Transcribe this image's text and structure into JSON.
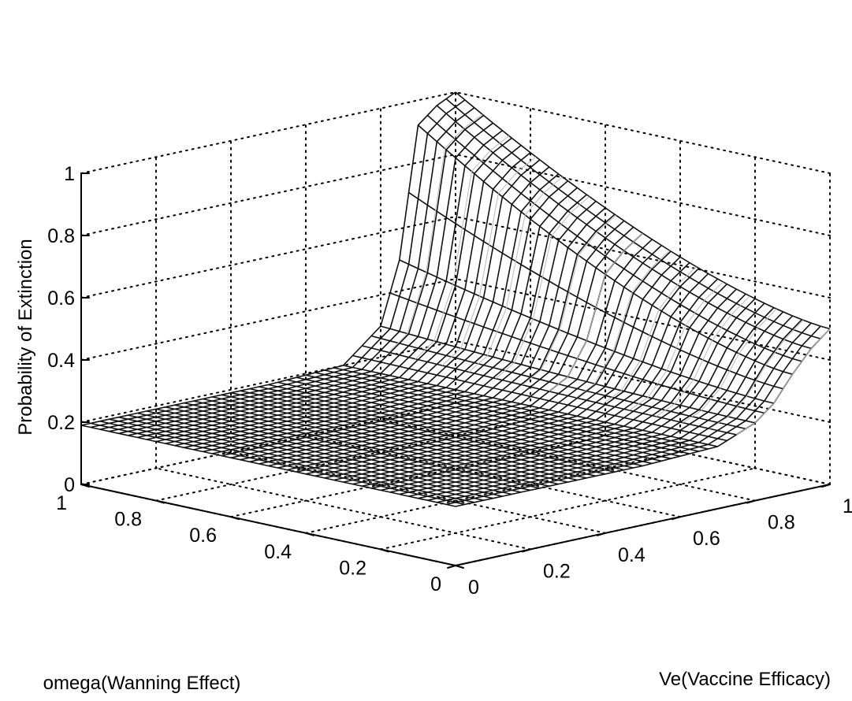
{
  "chart_data": {
    "type": "surface",
    "title": "",
    "xlabel": "Ve(Vaccine Efficacy)",
    "ylabel": "omega(Wanning Effect)",
    "zlabel": "Probability of Extinction",
    "xlim": [
      0,
      1
    ],
    "ylim": [
      0,
      1
    ],
    "zlim": [
      0,
      1
    ],
    "x_ticks": [
      "0",
      "0.2",
      "0.4",
      "0.6",
      "0.8",
      "1"
    ],
    "y_ticks": [
      "0",
      "0.2",
      "0.4",
      "0.6",
      "0.8",
      "1"
    ],
    "z_ticks": [
      "0",
      "0.2",
      "0.4",
      "0.6",
      "0.8",
      "1"
    ],
    "grid": true,
    "surface_color": "#111111",
    "description_values": {
      "Ve": [
        0,
        0.5,
        0.7,
        0.8,
        0.85,
        0.9,
        0.95,
        1
      ],
      "P_at_omega_1": [
        0.19,
        0.19,
        0.2,
        0.3,
        0.5,
        0.92,
        0.97,
        1.0
      ],
      "P_at_omega_0": [
        0.19,
        0.19,
        0.2,
        0.25,
        0.3,
        0.38,
        0.45,
        0.5
      ]
    }
  }
}
